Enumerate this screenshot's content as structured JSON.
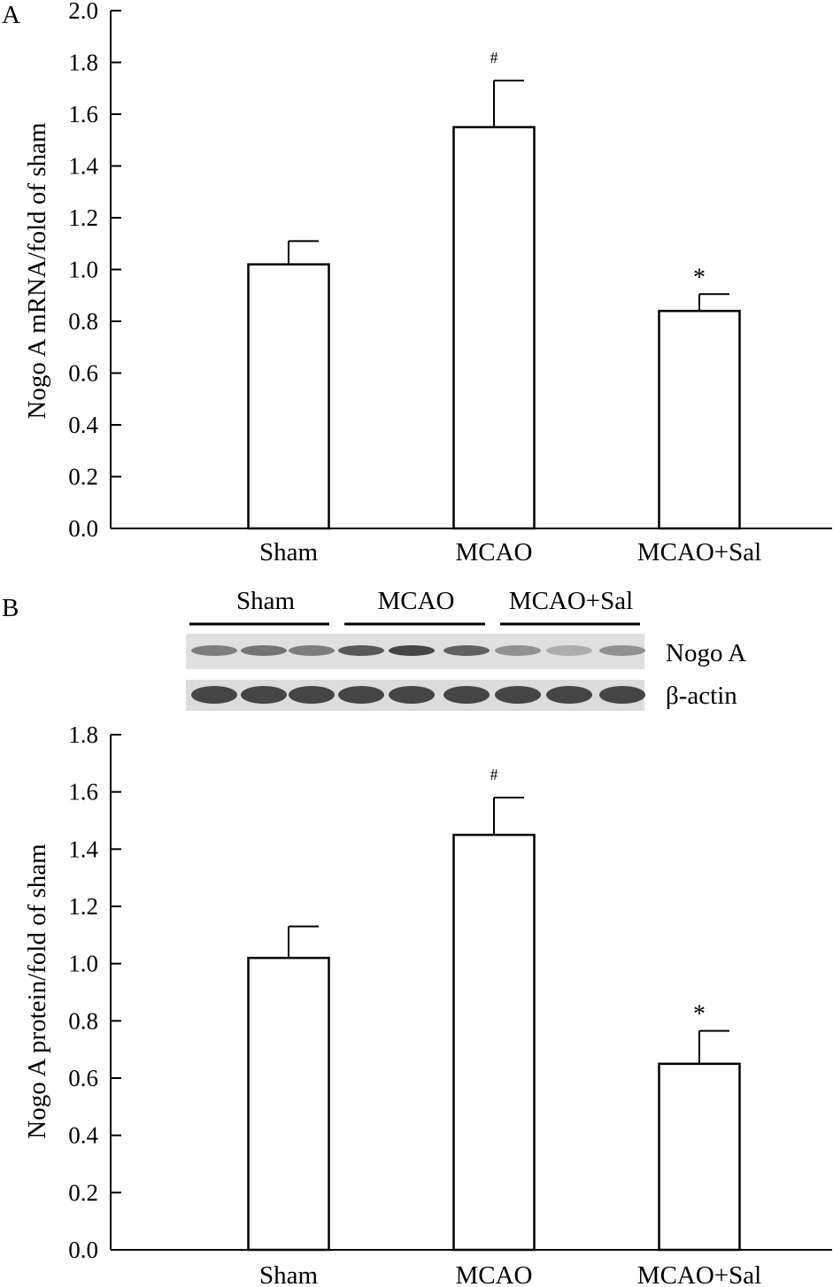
{
  "chart_data": [
    {
      "type": "bar",
      "panel": "A",
      "title": "",
      "xlabel": "",
      "ylabel": "Nogo A mRNA/fold of sham",
      "categories": [
        "Sham",
        "MCAO",
        "MCAO+Sal"
      ],
      "values": [
        1.02,
        1.55,
        0.84
      ],
      "errors": [
        0.09,
        0.18,
        0.065
      ],
      "significance": [
        "",
        "#",
        "*"
      ],
      "ylim": [
        0,
        2.0
      ],
      "yticks": [
        "0.0",
        "0.2",
        "0.4",
        "0.6",
        "0.8",
        "1.0",
        "1.2",
        "1.4",
        "1.6",
        "1.8",
        "2.0"
      ],
      "grid": false,
      "bar_color": "#ffffff",
      "edge_color": "#000000"
    },
    {
      "type": "bar",
      "panel": "B",
      "title": "",
      "xlabel": "",
      "ylabel": "Nogo A protein/fold of sham",
      "categories": [
        "Sham",
        "MCAO",
        "MCAO+Sal"
      ],
      "values": [
        1.02,
        1.45,
        0.65
      ],
      "errors": [
        0.11,
        0.13,
        0.115
      ],
      "significance": [
        "",
        "#",
        "*"
      ],
      "ylim": [
        0,
        1.8
      ],
      "yticks": [
        "0.0",
        "0.2",
        "0.4",
        "0.6",
        "0.8",
        "1.0",
        "1.2",
        "1.4",
        "1.6",
        "1.8"
      ],
      "grid": false,
      "bar_color": "#ffffff",
      "edge_color": "#000000"
    }
  ],
  "blot": {
    "group_labels": [
      "Sham",
      "MCAO",
      "MCAO+Sal"
    ],
    "rows": [
      {
        "label": "Nogo A",
        "lane_intensity": [
          0.55,
          0.6,
          0.55,
          0.75,
          0.85,
          0.7,
          0.45,
          0.3,
          0.45
        ]
      },
      {
        "label": "β-actin",
        "lane_intensity": [
          0.85,
          0.85,
          0.85,
          0.85,
          0.85,
          0.85,
          0.85,
          0.85,
          0.85
        ]
      }
    ]
  }
}
